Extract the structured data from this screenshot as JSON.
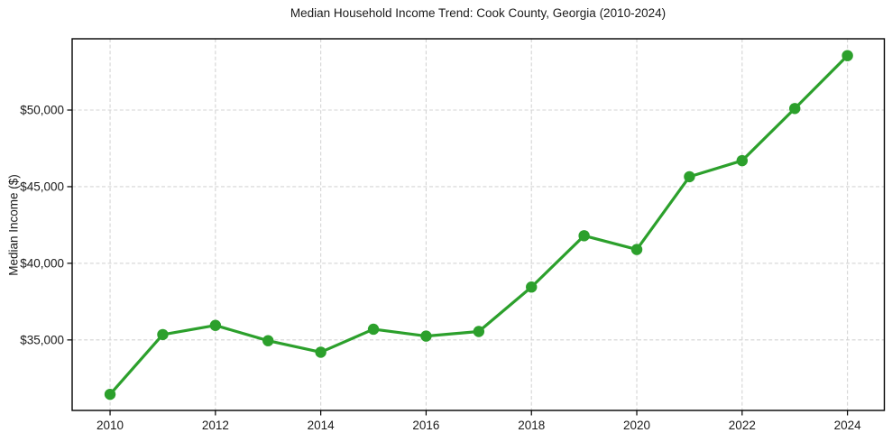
{
  "chart_data": {
    "type": "line",
    "title": "Median Household Income Trend: Cook County, Georgia (2010-2024)",
    "xlabel": "",
    "ylabel": "Median Income ($)",
    "x": [
      2010,
      2011,
      2012,
      2013,
      2014,
      2015,
      2016,
      2017,
      2018,
      2019,
      2020,
      2021,
      2022,
      2023,
      2024
    ],
    "series": [
      {
        "name": "Median Household Income",
        "values": [
          31450,
          35350,
          35950,
          34950,
          34200,
          35700,
          35250,
          35550,
          38450,
          41800,
          40900,
          45650,
          46700,
          50100,
          53550
        ]
      }
    ],
    "xticks": [
      2010,
      2012,
      2014,
      2016,
      2018,
      2020,
      2022,
      2024
    ],
    "xtick_labels": [
      "2010",
      "2012",
      "2014",
      "2016",
      "2018",
      "2020",
      "2022",
      "2024"
    ],
    "yticks": [
      35000,
      40000,
      45000,
      50000
    ],
    "ytick_labels": [
      "$35,000",
      "$40,000",
      "$45,000",
      "$50,000"
    ],
    "xlim": [
      2009.28,
      2024.7
    ],
    "ylim": [
      30400,
      54650
    ],
    "grid": "dashed",
    "legend": "none",
    "marker": "circle",
    "colors": {
      "line": "#2ca02c",
      "marker": "#2ca02c",
      "grid": "#d4d4d4",
      "axis": "#000000",
      "text": "#1a1a1a",
      "background": "#ffffff"
    }
  }
}
